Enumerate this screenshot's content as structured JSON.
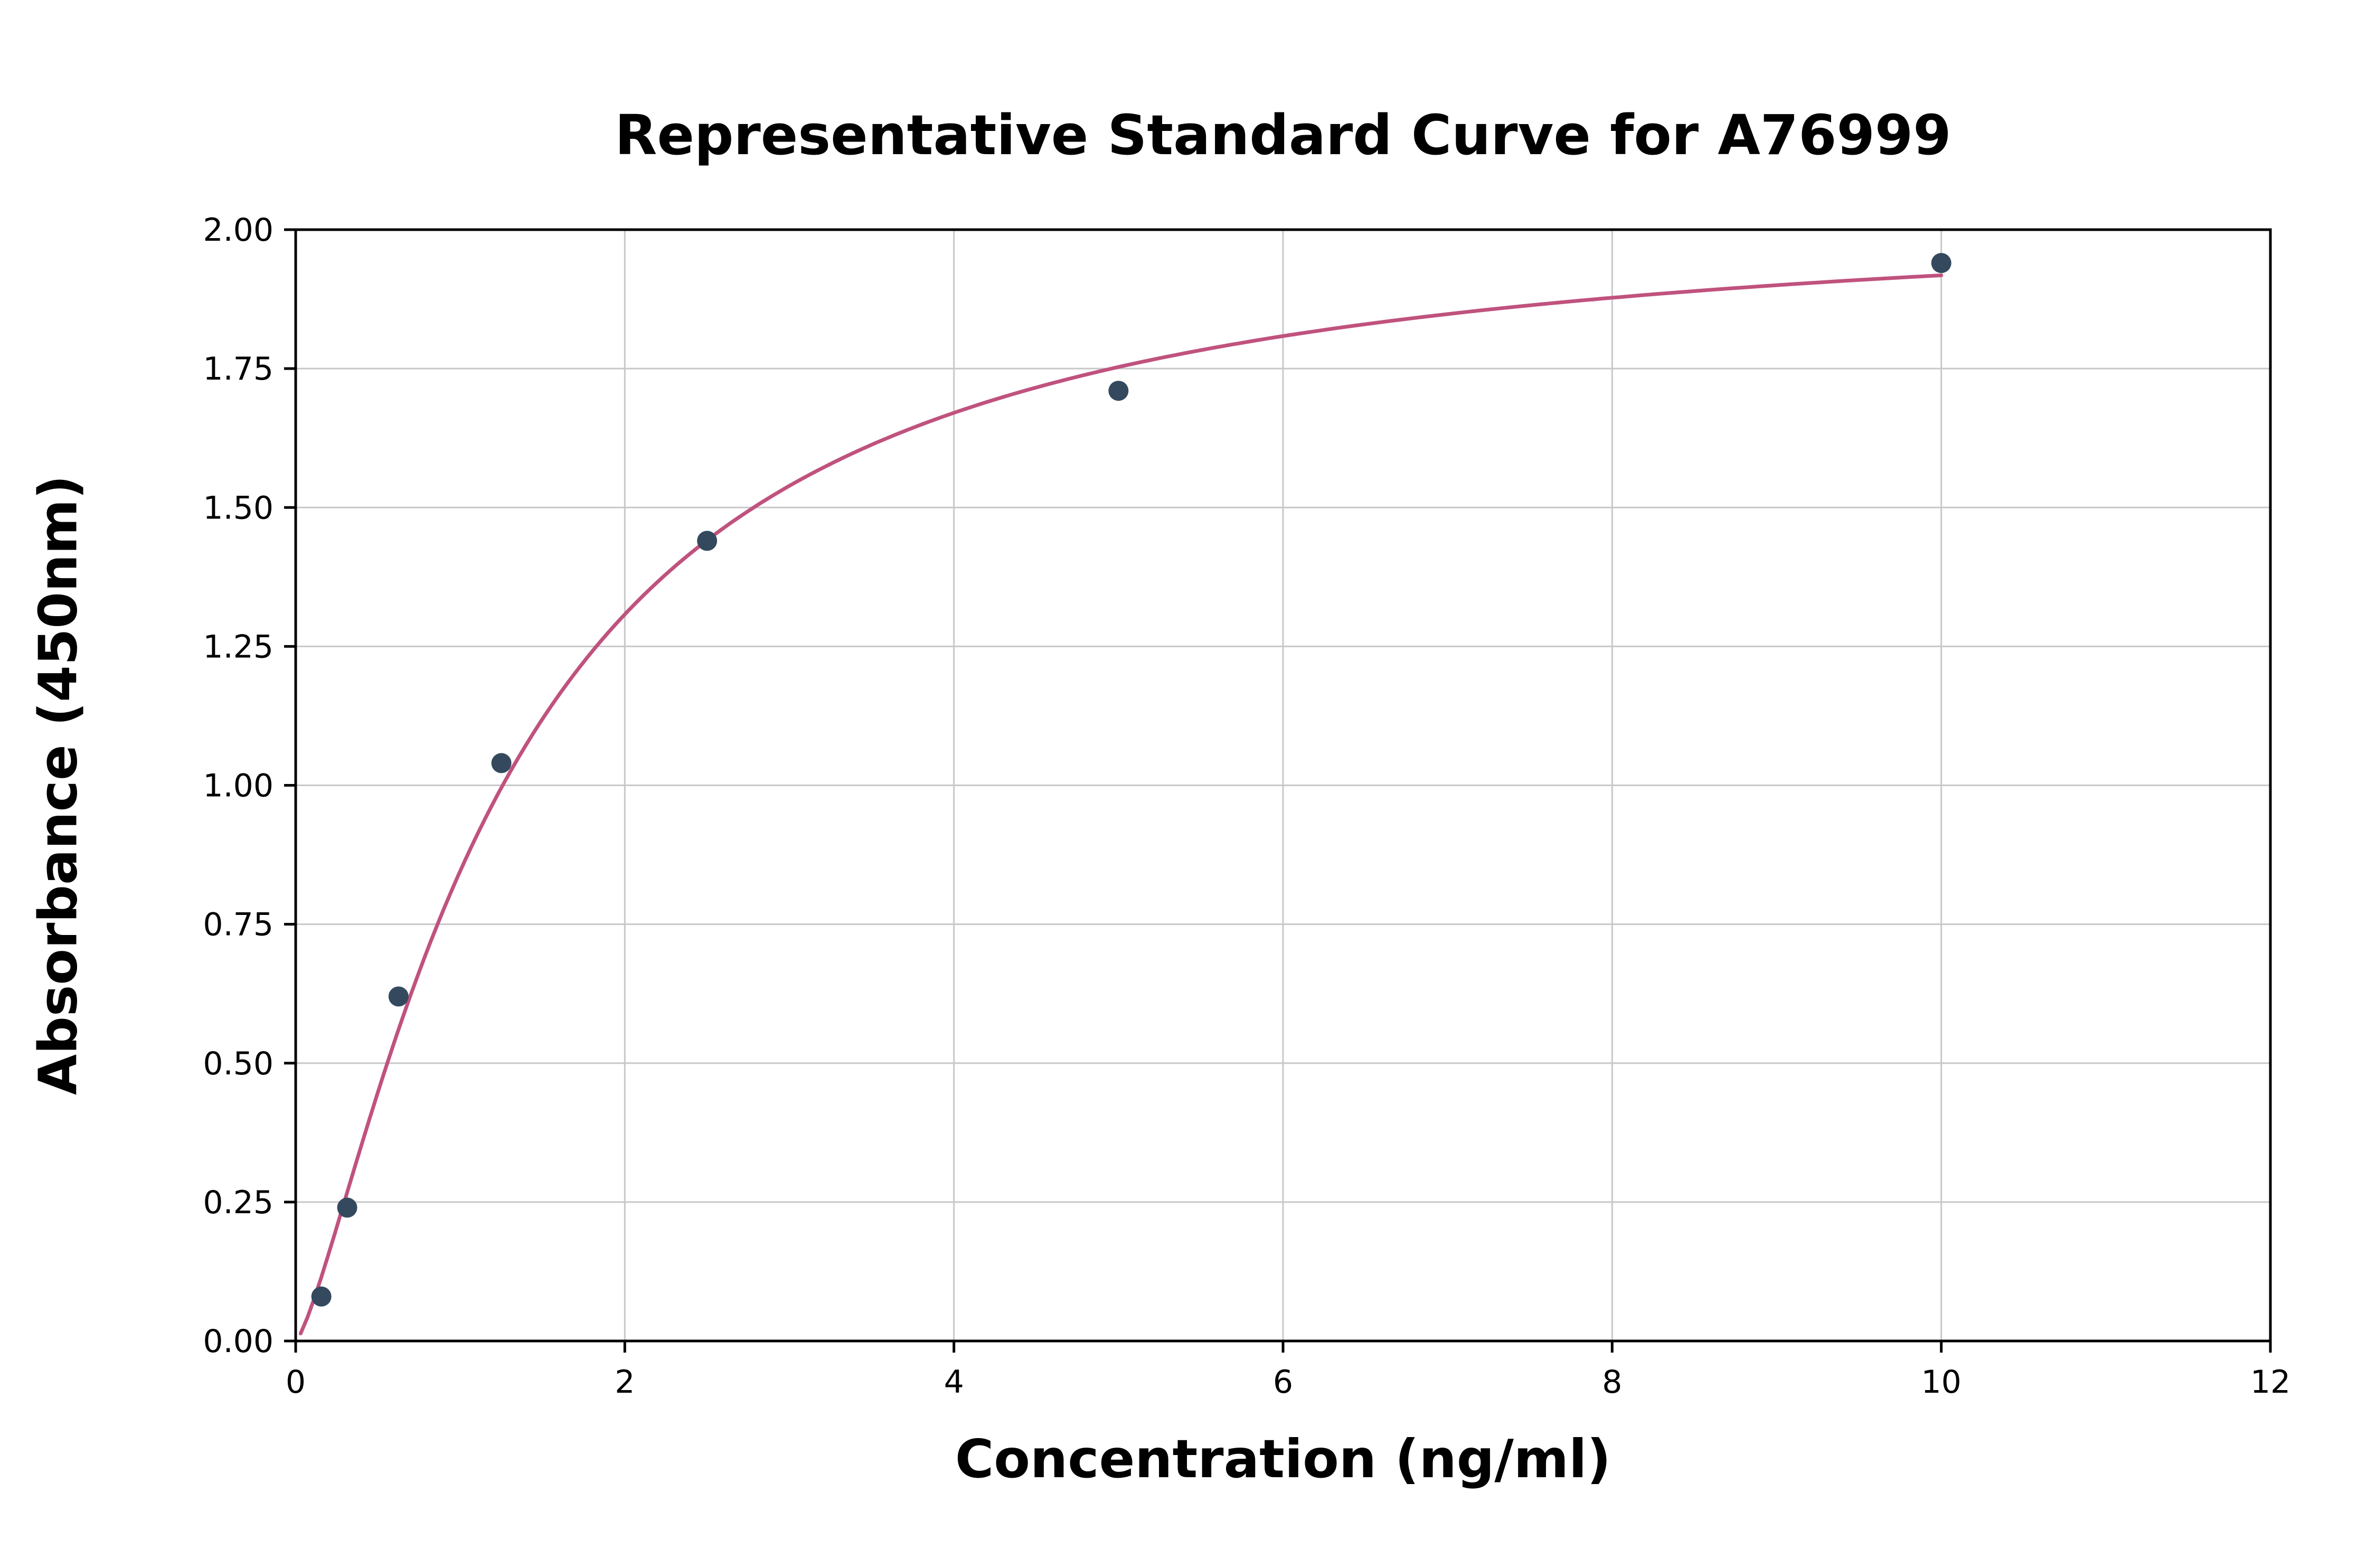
{
  "chart_data": {
    "type": "scatter",
    "title": "Representative Standard Curve for A76999",
    "xlabel": "Concentration (ng/ml)",
    "ylabel": "Absorbance (450nm)",
    "xlim": [
      0,
      12
    ],
    "ylim": [
      0.0,
      2.0
    ],
    "xticks": [
      0,
      2,
      4,
      6,
      8,
      10,
      12
    ],
    "xtick_labels": [
      "0",
      "2",
      "4",
      "6",
      "8",
      "10",
      "12"
    ],
    "yticks": [
      0,
      0.25,
      0.5,
      0.75,
      1.0,
      1.25,
      1.5,
      1.75,
      2.0
    ],
    "ytick_labels": [
      "0.00",
      "0.25",
      "0.50",
      "0.75",
      "1.00",
      "1.25",
      "1.50",
      "1.75",
      "2.00"
    ],
    "grid": true,
    "legend": false,
    "points": [
      {
        "x": 0.156,
        "y": 0.08
      },
      {
        "x": 0.313,
        "y": 0.24
      },
      {
        "x": 0.625,
        "y": 0.62
      },
      {
        "x": 1.25,
        "y": 1.04
      },
      {
        "x": 2.5,
        "y": 1.44
      },
      {
        "x": 5,
        "y": 1.71
      },
      {
        "x": 10,
        "y": 1.94
      }
    ],
    "fit_curve": {
      "model": "4PL",
      "a": 0,
      "b": 1.33,
      "c": 1.3,
      "d": 2.045,
      "x_start": 0.03,
      "x_end": 10
    },
    "colors": {
      "points": "#34495e",
      "curve": "#c0527e",
      "grid": "#c8c8c8",
      "axes": "#000000",
      "background": "#ffffff",
      "text": "#000000"
    }
  }
}
